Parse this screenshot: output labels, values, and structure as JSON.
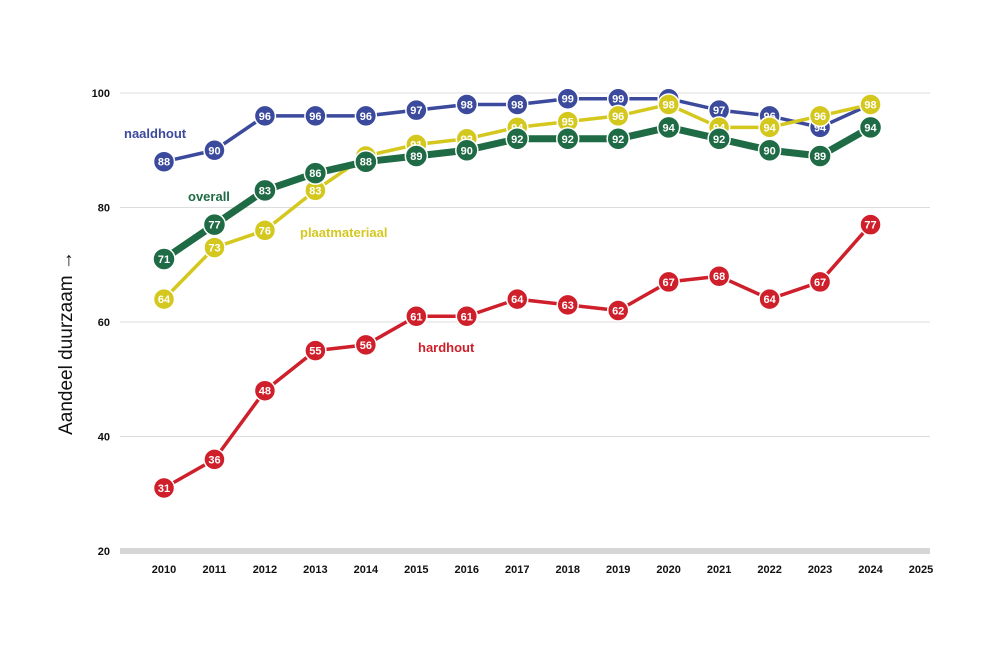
{
  "chart_data": {
    "type": "line",
    "ylabel": "Aandeel duurzaam →",
    "xlabel": "",
    "ylim": [
      20,
      100
    ],
    "y_ticks": [
      "20",
      "40",
      "60",
      "80",
      "100"
    ],
    "x_ticks": [
      "2010",
      "2011",
      "2012",
      "2013",
      "2014",
      "2015",
      "2016",
      "2017",
      "2018",
      "2019",
      "2020",
      "2021",
      "2022",
      "2023",
      "2024",
      "2025"
    ],
    "grid": true,
    "series": [
      {
        "name": "naaldhout",
        "color": "#3b4a9c",
        "x": [
          2010,
          2011,
          2012,
          2013,
          2014,
          2015,
          2016,
          2017,
          2018,
          2019,
          2020,
          2021,
          2022,
          2023,
          2024
        ],
        "values": [
          88,
          90,
          96,
          96,
          96,
          97,
          98,
          98,
          99,
          99,
          99,
          97,
          96,
          94,
          98
        ],
        "labels": [
          "88",
          "90",
          "96",
          "96",
          "96",
          "97",
          "98",
          "98",
          "99",
          "99",
          "99",
          "97",
          "96",
          "94",
          "98"
        ]
      },
      {
        "name": "plaatmateriaal",
        "color": "#d4c81f",
        "x": [
          2010,
          2011,
          2012,
          2013,
          2014,
          2015,
          2016,
          2017,
          2018,
          2019,
          2020,
          2021,
          2022,
          2023,
          2024
        ],
        "values": [
          64,
          73,
          76,
          83,
          89,
          91,
          92,
          94,
          95,
          96,
          98,
          94,
          94,
          96,
          98
        ],
        "labels": [
          "64",
          "73",
          "76",
          "83",
          "89",
          "91",
          "92",
          "94",
          "95",
          "96",
          "98",
          "94",
          "94",
          "96",
          "98"
        ]
      },
      {
        "name": "overall",
        "color": "#1f6b45",
        "x": [
          2010,
          2011,
          2012,
          2013,
          2014,
          2015,
          2016,
          2017,
          2018,
          2019,
          2020,
          2021,
          2022,
          2023,
          2024
        ],
        "values": [
          71,
          77,
          83,
          86,
          88,
          89,
          90,
          92,
          92,
          92,
          94,
          92,
          90,
          89,
          94
        ],
        "labels": [
          "71",
          "77",
          "83",
          "86",
          "88",
          "89",
          "90",
          "92",
          "92",
          "92",
          "94",
          "92",
          "90",
          "89",
          "94"
        ]
      },
      {
        "name": "hardhout",
        "color": "#cf1f2a",
        "x": [
          2010,
          2011,
          2012,
          2013,
          2014,
          2015,
          2016,
          2017,
          2018,
          2019,
          2020,
          2021,
          2022,
          2023,
          2024
        ],
        "values": [
          31,
          36,
          48,
          55,
          56,
          61,
          61,
          64,
          63,
          62,
          67,
          68,
          64,
          67,
          77
        ],
        "labels": [
          "31",
          "36",
          "48",
          "55",
          "56",
          "61",
          "61",
          "64",
          "63",
          "62",
          "67",
          "68",
          "64",
          "67",
          "77"
        ]
      }
    ]
  }
}
